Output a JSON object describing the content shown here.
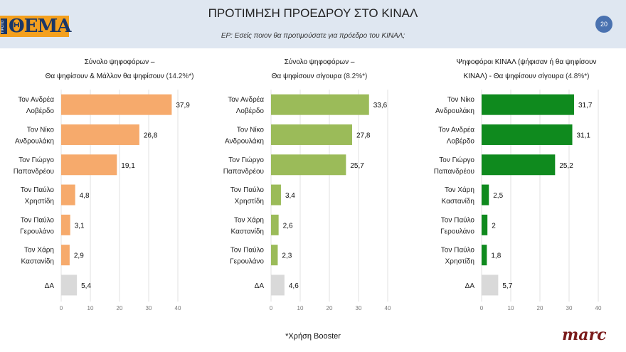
{
  "header": {
    "logo_text": "ΘΕΜΑ",
    "logo_side_text": "ΠΡΩΤΟ",
    "title": "ΠΡΟΤΙΜΗΣΗ ΠΡΟΕΔΡΟΥ ΣΤΟ ΚΙΝΑΛ",
    "subtitle": "ΕΡ: Εσείς ποιον θα προτιμούσατε για πρόεδρο του ΚΙΝΑΛ;",
    "page_number": "20"
  },
  "chart_data": [
    {
      "type": "bar",
      "orientation": "horizontal",
      "title_line1": "Σύνολο ψηφοφόρων –",
      "title_line2": "Θα ψηφίσουν & Μάλλον θα ψηφίσουν",
      "title_pct": "(14.2%*)",
      "categories": [
        [
          "Τον Ανδρέα",
          "Λοβέρδο"
        ],
        [
          "Τον Νίκο",
          "Ανδρουλάκη"
        ],
        [
          "Τον Γιώργο",
          "Παπανδρέου"
        ],
        [
          "Τον Παύλο",
          "Χρηστίδη"
        ],
        [
          "Τον Παύλο",
          "Γερουλάνο"
        ],
        [
          "Τον Χάρη",
          "Καστανίδη"
        ],
        [
          "ΔΑ"
        ]
      ],
      "values": [
        37.9,
        26.8,
        19.1,
        4.8,
        3.1,
        2.9,
        5.4
      ],
      "value_labels": [
        "37,9",
        "26,8",
        "19,1",
        "4,8",
        "3,1",
        "2,9",
        "5,4"
      ],
      "color": "#f6aa6c",
      "na_color": "#d9d9d9",
      "xlim": [
        0,
        40
      ],
      "xticks": [
        0,
        10,
        20,
        30,
        40
      ],
      "grid": true
    },
    {
      "type": "bar",
      "orientation": "horizontal",
      "title_line1": "Σύνολο ψηφοφόρων –",
      "title_line2": "Θα ψηφίσουν σίγουρα",
      "title_pct": "(8.2%*)",
      "categories": [
        [
          "Τον Ανδρέα",
          "Λοβέρδο"
        ],
        [
          "Τον Νίκο",
          "Ανδρουλάκη"
        ],
        [
          "Τον Γιώργο",
          "Παπανδρέου"
        ],
        [
          "Τον Παύλο",
          "Χρηστίδη"
        ],
        [
          "Τον Χάρη",
          "Καστανίδη"
        ],
        [
          "Τον Παύλο",
          "Γερουλάνο"
        ],
        [
          "ΔΑ"
        ]
      ],
      "values": [
        33.6,
        27.8,
        25.7,
        3.4,
        2.6,
        2.3,
        4.6
      ],
      "value_labels": [
        "33,6",
        "27,8",
        "25,7",
        "3,4",
        "2,6",
        "2,3",
        "4,6"
      ],
      "color": "#9bbb59",
      "na_color": "#d9d9d9",
      "xlim": [
        0,
        40
      ],
      "xticks": [
        0,
        10,
        20,
        30,
        40
      ],
      "grid": true
    },
    {
      "type": "bar",
      "orientation": "horizontal",
      "title_line1": "Ψηφοφόροι ΚΙΝΑΛ (ψήφισαν ή θα ψηφίσουν",
      "title_line2": "ΚΙΝΑΛ) - Θα ψηφίσουν σίγουρα",
      "title_pct": "(4.8%*)",
      "categories": [
        [
          "Τον Νίκο",
          "Ανδρουλάκη"
        ],
        [
          "Τον Ανδρέα",
          "Λοβέρδο"
        ],
        [
          "Τον Γιώργο",
          "Παπανδρέου"
        ],
        [
          "Τον Χάρη",
          "Καστανίδη"
        ],
        [
          "Τον Παύλο",
          "Γερουλάνο"
        ],
        [
          "Τον Παύλο",
          "Χρηστίδη"
        ],
        [
          "ΔΑ"
        ]
      ],
      "values": [
        31.7,
        31.1,
        25.2,
        2.5,
        2,
        1.8,
        5.7
      ],
      "value_labels": [
        "31,7",
        "31,1",
        "25,2",
        "2,5",
        "2",
        "1,8",
        "5,7"
      ],
      "color": "#0f8a1e",
      "na_color": "#d9d9d9",
      "xlim": [
        0,
        40
      ],
      "xticks": [
        0,
        10,
        20,
        30,
        40
      ],
      "grid": true
    }
  ],
  "footer": {
    "footnote": "*Χρήση Booster",
    "brand": "marc"
  }
}
